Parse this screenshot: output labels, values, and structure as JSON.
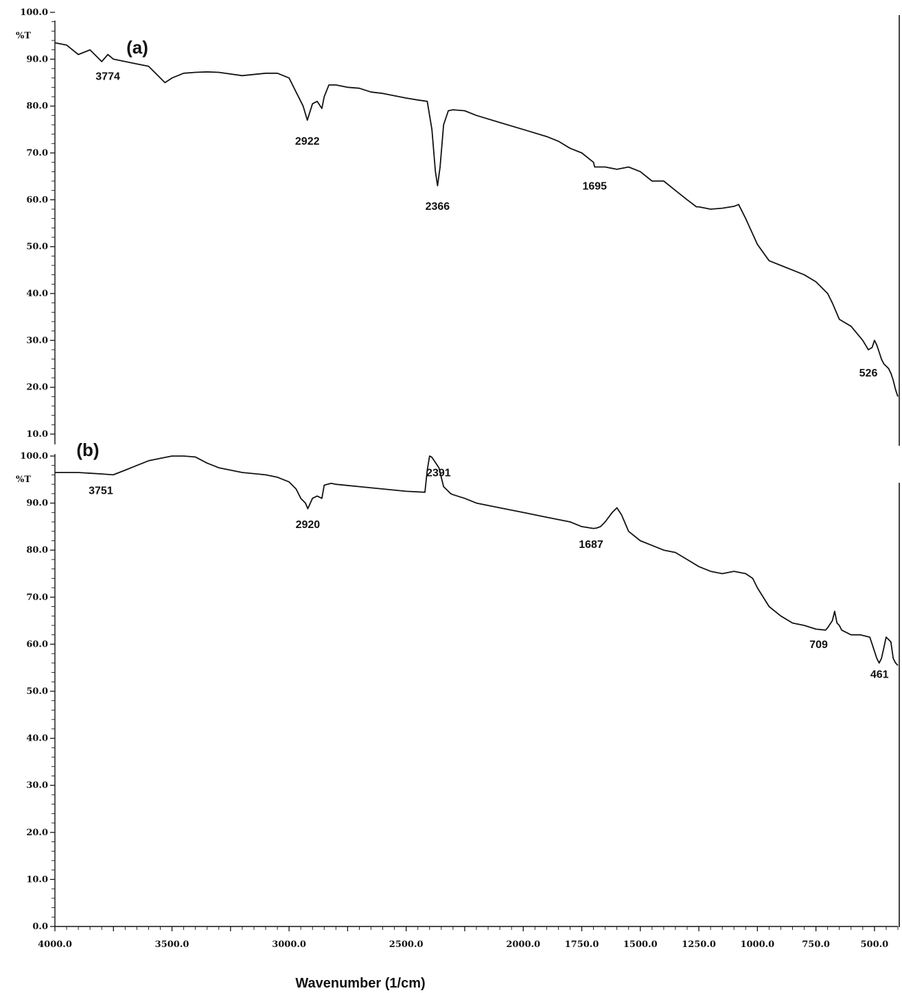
{
  "chart_data": [
    {
      "panel": "(a)",
      "type": "line",
      "ylabel": "%T",
      "xlim": [
        4000,
        400
      ],
      "ylim": [
        10,
        100
      ],
      "y_ticks": [
        "100.0",
        "90.0",
        "80.0",
        "70.0",
        "60.0",
        "50.0",
        "40.0",
        "30.0",
        "20.0",
        "10.0"
      ],
      "series": [
        {
          "x": [
            4000,
            3950,
            3900,
            3850,
            3800,
            3774,
            3750,
            3700,
            3650,
            3600,
            3560,
            3530,
            3500,
            3450,
            3400,
            3350,
            3300,
            3200,
            3100,
            3050,
            3000,
            2970,
            2940,
            2922,
            2900,
            2880,
            2860,
            2850,
            2830,
            2800,
            2750,
            2700,
            2650,
            2600,
            2550,
            2500,
            2450,
            2410,
            2390,
            2375,
            2366,
            2355,
            2340,
            2320,
            2300,
            2250,
            2200,
            2100,
            2000,
            1900,
            1850,
            1800,
            1750,
            1700,
            1695,
            1650,
            1600,
            1550,
            1500,
            1450,
            1400,
            1350,
            1300,
            1260,
            1250,
            1200,
            1150,
            1100,
            1080,
            1050,
            1000,
            950,
            900,
            850,
            800,
            750,
            700,
            680,
            650,
            600,
            550,
            526,
            510,
            500,
            490,
            480,
            470,
            460,
            450,
            440,
            430,
            420,
            410,
            400
          ],
          "y": [
            93.5,
            93.0,
            91.0,
            92.0,
            89.5,
            91.0,
            90.0,
            89.5,
            89.0,
            88.5,
            86.5,
            85.0,
            86.0,
            87.0,
            87.2,
            87.3,
            87.2,
            86.5,
            87.0,
            87.0,
            86.0,
            83.0,
            80.0,
            77.0,
            80.5,
            81.0,
            79.5,
            82.0,
            84.5,
            84.5,
            84.0,
            83.8,
            83.0,
            82.7,
            82.2,
            81.7,
            81.3,
            81.0,
            75.0,
            66.0,
            63.0,
            67.0,
            76.0,
            79.0,
            79.2,
            79.0,
            78.0,
            76.5,
            75.0,
            73.5,
            72.5,
            71.0,
            70.0,
            68.0,
            67.0,
            67.0,
            66.5,
            67.0,
            66.0,
            64.0,
            64.0,
            62.0,
            60.0,
            58.5,
            58.5,
            58.0,
            58.2,
            58.6,
            59.0,
            56.0,
            50.5,
            47.0,
            46.0,
            45.0,
            44.0,
            42.5,
            40.0,
            38.0,
            34.5,
            33.0,
            30.0,
            28.0,
            28.5,
            30.0,
            29.0,
            27.5,
            26.0,
            25.0,
            24.5,
            24.0,
            23.0,
            21.5,
            19.5,
            18.0
          ]
        }
      ],
      "annotations": [
        {
          "x": 3774,
          "label": "3774"
        },
        {
          "x": 2922,
          "label": "2922"
        },
        {
          "x": 2366,
          "label": "2366"
        },
        {
          "x": 1695,
          "label": "1695"
        },
        {
          "x": 526,
          "label": "526"
        }
      ],
      "grid": false
    },
    {
      "panel": "(b)",
      "type": "line",
      "ylabel": "%T",
      "xlabel": "Wavenumber (1/cm)",
      "xlim": [
        4000,
        400
      ],
      "ylim": [
        0,
        100
      ],
      "y_ticks": [
        "100.0",
        "90.0",
        "80.0",
        "70.0",
        "60.0",
        "50.0",
        "40.0",
        "30.0",
        "20.0",
        "10.0",
        "0.0"
      ],
      "x_ticks": [
        "4000.0",
        "3500.0",
        "3000.0",
        "2500.0",
        "2000.0",
        "1750.0",
        "1500.0",
        "1250.0",
        "1000.0",
        "750.0",
        "500.0"
      ],
      "series": [
        {
          "x": [
            4000,
            3900,
            3800,
            3751,
            3700,
            3650,
            3600,
            3550,
            3500,
            3450,
            3400,
            3350,
            3300,
            3200,
            3100,
            3050,
            3000,
            2970,
            2950,
            2930,
            2920,
            2900,
            2880,
            2860,
            2850,
            2820,
            2800,
            2700,
            2600,
            2500,
            2420,
            2410,
            2400,
            2391,
            2380,
            2360,
            2340,
            2320,
            2310,
            2300,
            2250,
            2200,
            2100,
            2000,
            1900,
            1800,
            1750,
            1700,
            1687,
            1670,
            1650,
            1620,
            1600,
            1580,
            1550,
            1500,
            1450,
            1400,
            1350,
            1300,
            1250,
            1200,
            1150,
            1100,
            1050,
            1020,
            1000,
            950,
            900,
            850,
            800,
            750,
            709,
            700,
            680,
            670,
            660,
            650,
            640,
            620,
            600,
            560,
            520,
            500,
            490,
            480,
            470,
            461,
            450,
            440,
            430,
            420,
            410,
            400
          ],
          "y": [
            96.5,
            96.5,
            96.2,
            96.0,
            97.0,
            98.0,
            99.0,
            99.5,
            100.0,
            100.0,
            99.8,
            98.5,
            97.5,
            96.5,
            96.0,
            95.5,
            94.5,
            93.0,
            91.0,
            90.0,
            88.8,
            91.0,
            91.5,
            91.0,
            93.8,
            94.2,
            94.0,
            93.5,
            93.0,
            92.5,
            92.3,
            97.0,
            100.0,
            99.8,
            99.0,
            97.5,
            93.5,
            92.5,
            92.0,
            91.8,
            91.0,
            90.0,
            89.0,
            88.0,
            87.0,
            86.0,
            85.0,
            84.6,
            84.7,
            85.0,
            86.0,
            88.0,
            89.0,
            87.5,
            84.0,
            82.0,
            81.0,
            80.0,
            79.5,
            78.0,
            76.5,
            75.5,
            75.0,
            75.5,
            75.0,
            74.0,
            72.0,
            68.0,
            66.0,
            64.5,
            64.0,
            63.2,
            63.0,
            63.5,
            65.0,
            67.0,
            64.5,
            64.0,
            63.0,
            62.5,
            62.0,
            62.0,
            61.5,
            58.5,
            57.0,
            56.0,
            57.0,
            59.0,
            61.5,
            61.0,
            60.5,
            57.0,
            56.0,
            55.5
          ]
        }
      ],
      "annotations": [
        {
          "x": 3751,
          "label": "3751"
        },
        {
          "x": 2920,
          "label": "2920"
        },
        {
          "x": 2391,
          "label": "2391"
        },
        {
          "x": 1687,
          "label": "1687"
        },
        {
          "x": 709,
          "label": "709"
        },
        {
          "x": 461,
          "label": "461"
        }
      ],
      "grid": false
    }
  ]
}
